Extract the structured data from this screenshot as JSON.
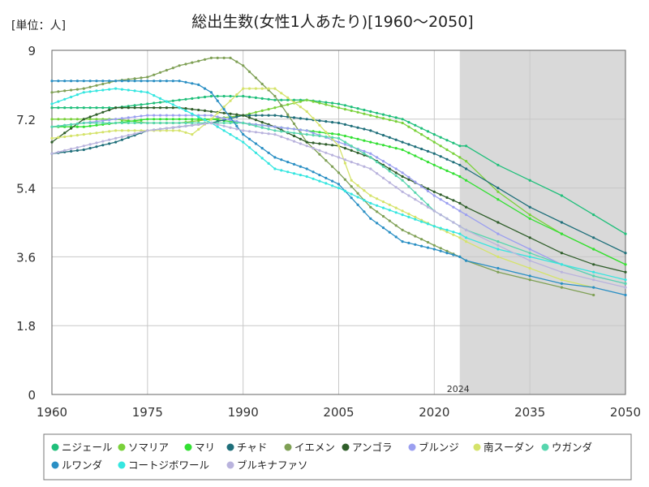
{
  "chart_data": {
    "type": "line",
    "title": "総出生数(女性1人あたり)[1960～2050]",
    "unit_label": "[単位：人]",
    "xlim": [
      1960,
      2050
    ],
    "ylim": [
      0,
      9
    ],
    "x_ticks": [
      1960,
      1975,
      1990,
      2005,
      2020,
      2035,
      2050
    ],
    "y_ticks": [
      0,
      1.8,
      3.6,
      5.4,
      7.2,
      9
    ],
    "y_tick_labels": [
      "0",
      "1.8",
      "3.6",
      "5.4",
      "7.2",
      "9"
    ],
    "forecast_start": 2024,
    "forecast_label": "2024",
    "grid": true,
    "legend_position": "bottom",
    "series": [
      {
        "name": "ニジェール",
        "color": "#1fbf7a",
        "x": [
          1960,
          1965,
          1970,
          1975,
          1980,
          1985,
          1990,
          1995,
          2000,
          2005,
          2010,
          2015,
          2020,
          2024,
          2025,
          2030,
          2035,
          2040,
          2045,
          2050
        ],
        "y": [
          7.5,
          7.5,
          7.5,
          7.6,
          7.7,
          7.8,
          7.8,
          7.7,
          7.7,
          7.6,
          7.4,
          7.2,
          6.8,
          6.5,
          6.5,
          6.0,
          5.6,
          5.2,
          4.7,
          4.2
        ]
      },
      {
        "name": "ソマリア",
        "color": "#7ad13a",
        "x": [
          1960,
          1965,
          1970,
          1975,
          1980,
          1985,
          1990,
          1995,
          2000,
          2005,
          2010,
          2015,
          2020,
          2024,
          2025,
          2030,
          2035,
          2040,
          2045,
          2050
        ],
        "y": [
          7.2,
          7.2,
          7.2,
          7.1,
          7.1,
          7.2,
          7.3,
          7.5,
          7.7,
          7.5,
          7.3,
          7.1,
          6.6,
          6.2,
          6.1,
          5.3,
          4.7,
          4.2,
          3.8,
          3.4
        ]
      },
      {
        "name": "マリ",
        "color": "#33e033",
        "x": [
          1960,
          1965,
          1970,
          1975,
          1980,
          1985,
          1990,
          1995,
          2000,
          2005,
          2010,
          2015,
          2020,
          2024,
          2025,
          2030,
          2035,
          2040,
          2045,
          2050
        ],
        "y": [
          7.0,
          7.0,
          7.1,
          7.2,
          7.2,
          7.2,
          7.1,
          7.0,
          6.9,
          6.8,
          6.6,
          6.4,
          6.0,
          5.7,
          5.6,
          5.1,
          4.6,
          4.2,
          3.8,
          3.4
        ]
      },
      {
        "name": "チャド",
        "color": "#1f6f7a",
        "x": [
          1960,
          1965,
          1970,
          1975,
          1980,
          1985,
          1990,
          1995,
          2000,
          2005,
          2010,
          2015,
          2020,
          2024,
          2025,
          2030,
          2035,
          2040,
          2045,
          2050
        ],
        "y": [
          6.3,
          6.4,
          6.6,
          6.9,
          7.0,
          7.1,
          7.3,
          7.3,
          7.2,
          7.1,
          6.9,
          6.6,
          6.3,
          6.0,
          5.9,
          5.4,
          4.9,
          4.5,
          4.1,
          3.7
        ]
      },
      {
        "name": "イエメン",
        "color": "#7fa055",
        "x": [
          1960,
          1965,
          1970,
          1975,
          1980,
          1985,
          1988,
          1990,
          1995,
          2000,
          2005,
          2010,
          2015,
          2020,
          2024,
          2025,
          2030,
          2035,
          2040,
          2045
        ],
        "y": [
          7.9,
          8.0,
          8.2,
          8.3,
          8.6,
          8.8,
          8.8,
          8.6,
          7.8,
          6.6,
          5.8,
          4.9,
          4.3,
          3.9,
          3.6,
          3.5,
          3.2,
          3.0,
          2.8,
          2.6
        ]
      },
      {
        "name": "アンゴラ",
        "color": "#2f5e2a",
        "x": [
          1960,
          1965,
          1970,
          1975,
          1980,
          1985,
          1990,
          1995,
          2000,
          2005,
          2010,
          2015,
          2020,
          2024,
          2025,
          2030,
          2035,
          2040,
          2045,
          2050
        ],
        "y": [
          6.6,
          7.2,
          7.5,
          7.5,
          7.5,
          7.4,
          7.3,
          7.0,
          6.6,
          6.5,
          6.2,
          5.7,
          5.3,
          5.0,
          4.9,
          4.5,
          4.1,
          3.7,
          3.4,
          3.2
        ]
      },
      {
        "name": "ブルンジ",
        "color": "#9b9ff0",
        "x": [
          1960,
          1965,
          1970,
          1975,
          1980,
          1985,
          1990,
          1995,
          2000,
          2005,
          2010,
          2015,
          2020,
          2024,
          2025,
          2030,
          2035,
          2040,
          2045,
          2050
        ],
        "y": [
          7.0,
          7.1,
          7.2,
          7.3,
          7.3,
          7.3,
          7.1,
          7.0,
          6.9,
          6.6,
          6.3,
          5.8,
          5.2,
          4.8,
          4.7,
          4.2,
          3.8,
          3.4,
          3.1,
          2.9
        ]
      },
      {
        "name": "南スーダン",
        "color": "#d5e36a",
        "x": [
          1960,
          1965,
          1970,
          1975,
          1980,
          1982,
          1985,
          1990,
          1995,
          2000,
          2005,
          2007,
          2010,
          2015,
          2020,
          2024,
          2025,
          2030,
          2035,
          2040,
          2045
        ],
        "y": [
          6.7,
          6.8,
          6.9,
          6.9,
          6.9,
          6.8,
          7.2,
          8.0,
          8.0,
          7.4,
          6.5,
          5.6,
          5.2,
          4.8,
          4.4,
          4.1,
          4.0,
          3.6,
          3.3,
          3.0,
          2.8
        ]
      },
      {
        "name": "ウガンダ",
        "color": "#57d6ae",
        "x": [
          1960,
          1965,
          1970,
          1975,
          1980,
          1985,
          1990,
          1995,
          2000,
          2005,
          2010,
          2015,
          2020,
          2024,
          2025,
          2030,
          2035,
          2040,
          2045,
          2050
        ],
        "y": [
          7.0,
          7.1,
          7.1,
          7.1,
          7.1,
          7.1,
          7.1,
          6.9,
          6.8,
          6.7,
          6.2,
          5.6,
          4.8,
          4.4,
          4.3,
          4.0,
          3.7,
          3.4,
          3.1,
          2.9
        ]
      },
      {
        "name": "ルワンダ",
        "color": "#2a8fc4",
        "x": [
          1960,
          1965,
          1970,
          1975,
          1980,
          1983,
          1985,
          1990,
          1995,
          2000,
          2005,
          2010,
          2015,
          2020,
          2024,
          2025,
          2030,
          2035,
          2040,
          2045,
          2050
        ],
        "y": [
          8.2,
          8.2,
          8.2,
          8.2,
          8.2,
          8.1,
          7.9,
          6.8,
          6.2,
          5.9,
          5.5,
          4.6,
          4.0,
          3.8,
          3.6,
          3.5,
          3.3,
          3.1,
          2.9,
          2.8,
          2.6
        ]
      },
      {
        "name": "コートジボワール",
        "color": "#35e6e0",
        "x": [
          1960,
          1965,
          1970,
          1975,
          1980,
          1985,
          1990,
          1995,
          2000,
          2005,
          2010,
          2015,
          2020,
          2024,
          2025,
          2030,
          2035,
          2040,
          2045,
          2050
        ],
        "y": [
          7.6,
          7.9,
          8.0,
          7.9,
          7.5,
          7.1,
          6.6,
          5.9,
          5.7,
          5.4,
          5.0,
          4.7,
          4.4,
          4.2,
          4.1,
          3.8,
          3.6,
          3.4,
          3.2,
          3.0
        ]
      },
      {
        "name": "ブルキナファソ",
        "color": "#b9b3dd",
        "x": [
          1960,
          1965,
          1970,
          1975,
          1980,
          1985,
          1990,
          1995,
          2000,
          2005,
          2010,
          2015,
          2020,
          2024,
          2025,
          2030,
          2035,
          2040,
          2045,
          2050
        ],
        "y": [
          6.3,
          6.5,
          6.7,
          6.9,
          7.0,
          7.1,
          6.9,
          6.8,
          6.5,
          6.2,
          5.9,
          5.3,
          4.8,
          4.4,
          4.3,
          3.9,
          3.5,
          3.2,
          3.0,
          2.8
        ]
      }
    ]
  }
}
